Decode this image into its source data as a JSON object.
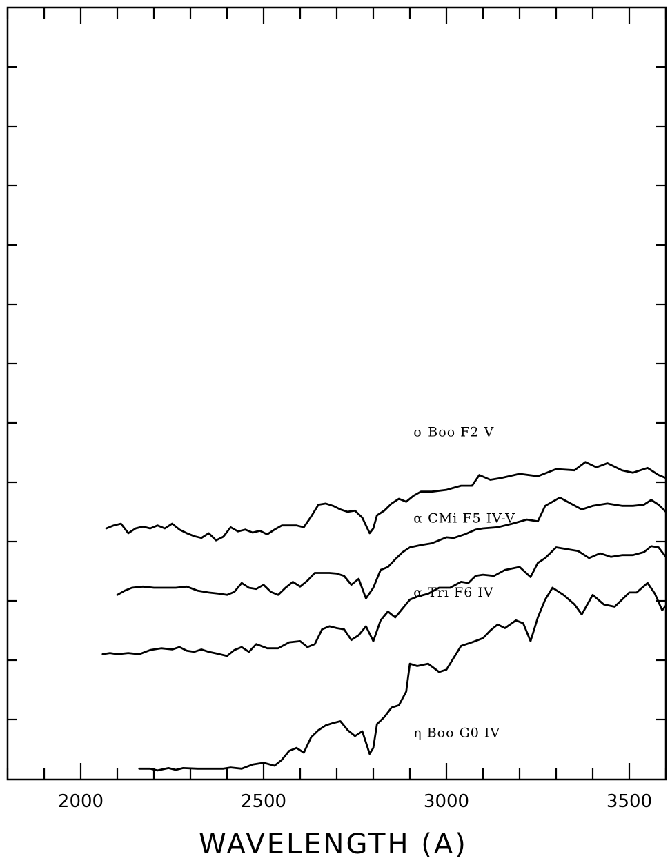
{
  "chart_data": {
    "type": "line",
    "title": "",
    "xlabel": "WAVELENGTH (A)",
    "ylabel": "",
    "xlim": [
      1800,
      3600
    ],
    "x_ticks": [
      2000,
      2500,
      3000,
      3500
    ],
    "x_tick_labels": [
      "2000",
      "2500",
      "3000",
      "3500"
    ],
    "y_scale": "offset relative flux (unlabeled)",
    "grid": false,
    "series": [
      {
        "name": "σ Boo F2 V",
        "x": [
          2070,
          2090,
          2110,
          2130,
          2150,
          2170,
          2190,
          2210,
          2230,
          2250,
          2270,
          2290,
          2310,
          2330,
          2350,
          2370,
          2390,
          2410,
          2430,
          2450,
          2470,
          2490,
          2510,
          2530,
          2550,
          2570,
          2590,
          2610,
          2630,
          2650,
          2670,
          2690,
          2710,
          2730,
          2750,
          2770,
          2790,
          2800,
          2810,
          2830,
          2850,
          2870,
          2890,
          2910,
          2930,
          2960,
          3000,
          3040,
          3070,
          3090,
          3120,
          3150,
          3200,
          3250,
          3300,
          3350,
          3380,
          3410,
          3440,
          3480,
          3510,
          3550,
          3580,
          3600
        ],
        "y": [
          4.0,
          4.05,
          4.08,
          3.92,
          4.0,
          4.03,
          4.0,
          4.05,
          4.0,
          4.08,
          3.98,
          3.92,
          3.87,
          3.84,
          3.92,
          3.8,
          3.86,
          4.02,
          3.95,
          3.98,
          3.93,
          3.96,
          3.9,
          3.98,
          4.05,
          4.05,
          4.05,
          4.02,
          4.2,
          4.4,
          4.42,
          4.38,
          4.32,
          4.28,
          4.3,
          4.18,
          3.92,
          4.0,
          4.22,
          4.3,
          4.42,
          4.5,
          4.45,
          4.55,
          4.62,
          4.62,
          4.65,
          4.72,
          4.72,
          4.9,
          4.82,
          4.85,
          4.92,
          4.88,
          5.0,
          4.98,
          5.12,
          5.03,
          5.1,
          4.98,
          4.94,
          5.02,
          4.9,
          4.85
        ]
      },
      {
        "name": "α CMi F5 IV-V",
        "x": [
          2100,
          2120,
          2140,
          2170,
          2200,
          2230,
          2260,
          2290,
          2320,
          2350,
          2380,
          2400,
          2420,
          2440,
          2460,
          2480,
          2500,
          2520,
          2540,
          2560,
          2580,
          2600,
          2620,
          2640,
          2660,
          2680,
          2700,
          2720,
          2740,
          2760,
          2780,
          2800,
          2820,
          2840,
          2860,
          2880,
          2900,
          2930,
          2960,
          3000,
          3020,
          3050,
          3080,
          3100,
          3140,
          3180,
          3220,
          3250,
          3270,
          3290,
          3310,
          3340,
          3370,
          3400,
          3440,
          3480,
          3510,
          3540,
          3560,
          3580,
          3600
        ],
        "y": [
          2.88,
          2.95,
          3.0,
          3.02,
          3.0,
          3.0,
          3.0,
          3.02,
          2.95,
          2.92,
          2.9,
          2.88,
          2.93,
          3.08,
          3.0,
          2.98,
          3.05,
          2.93,
          2.88,
          3.0,
          3.1,
          3.02,
          3.12,
          3.25,
          3.25,
          3.25,
          3.24,
          3.2,
          3.05,
          3.15,
          2.82,
          3.0,
          3.3,
          3.35,
          3.48,
          3.6,
          3.68,
          3.72,
          3.75,
          3.85,
          3.84,
          3.9,
          3.98,
          4.0,
          4.02,
          4.08,
          4.15,
          4.12,
          4.38,
          4.45,
          4.52,
          4.42,
          4.32,
          4.38,
          4.42,
          4.38,
          4.38,
          4.4,
          4.48,
          4.4,
          4.28
        ]
      },
      {
        "name": "α Tri F6 IV",
        "x": [
          2060,
          2080,
          2100,
          2130,
          2160,
          2190,
          2220,
          2250,
          2270,
          2290,
          2310,
          2330,
          2350,
          2380,
          2400,
          2420,
          2440,
          2460,
          2480,
          2510,
          2540,
          2570,
          2600,
          2620,
          2640,
          2660,
          2680,
          2700,
          2720,
          2740,
          2760,
          2780,
          2800,
          2820,
          2840,
          2860,
          2880,
          2900,
          2920,
          2950,
          2980,
          3010,
          3040,
          3060,
          3080,
          3100,
          3130,
          3160,
          3200,
          3230,
          3250,
          3270,
          3300,
          3330,
          3360,
          3390,
          3420,
          3450,
          3480,
          3510,
          3540,
          3560,
          3580,
          3600
        ],
        "y": [
          1.88,
          1.9,
          1.88,
          1.9,
          1.88,
          1.95,
          1.98,
          1.96,
          2.0,
          1.94,
          1.92,
          1.96,
          1.92,
          1.88,
          1.85,
          1.95,
          2.0,
          1.92,
          2.05,
          1.98,
          1.98,
          2.08,
          2.1,
          2.0,
          2.05,
          2.3,
          2.35,
          2.32,
          2.3,
          2.12,
          2.2,
          2.35,
          2.1,
          2.45,
          2.6,
          2.5,
          2.65,
          2.8,
          2.85,
          2.9,
          3.0,
          3.0,
          3.1,
          3.08,
          3.2,
          3.22,
          3.2,
          3.3,
          3.35,
          3.18,
          3.42,
          3.5,
          3.68,
          3.65,
          3.62,
          3.5,
          3.58,
          3.52,
          3.55,
          3.55,
          3.6,
          3.7,
          3.68,
          3.52
        ]
      },
      {
        "name": "η Boo G0 IV",
        "x": [
          2160,
          2190,
          2210,
          2240,
          2260,
          2280,
          2320,
          2360,
          2390,
          2410,
          2440,
          2470,
          2500,
          2530,
          2550,
          2570,
          2590,
          2610,
          2630,
          2650,
          2670,
          2690,
          2710,
          2730,
          2750,
          2770,
          2790,
          2800,
          2810,
          2830,
          2850,
          2870,
          2890,
          2900,
          2920,
          2950,
          2980,
          3000,
          3020,
          3040,
          3070,
          3100,
          3120,
          3140,
          3160,
          3190,
          3210,
          3230,
          3250,
          3270,
          3290,
          3320,
          3350,
          3370,
          3400,
          3430,
          3460,
          3480,
          3500,
          3520,
          3550,
          3570,
          3590,
          3600
        ],
        "y": [
          -0.05,
          -0.05,
          -0.08,
          -0.04,
          -0.07,
          -0.04,
          -0.05,
          -0.05,
          -0.05,
          -0.03,
          -0.05,
          0.02,
          0.05,
          0.0,
          0.1,
          0.25,
          0.3,
          0.22,
          0.48,
          0.6,
          0.68,
          0.72,
          0.75,
          0.6,
          0.5,
          0.58,
          0.2,
          0.3,
          0.7,
          0.82,
          0.98,
          1.02,
          1.25,
          1.72,
          1.68,
          1.72,
          1.58,
          1.62,
          1.82,
          2.02,
          2.08,
          2.15,
          2.28,
          2.38,
          2.32,
          2.45,
          2.4,
          2.1,
          2.5,
          2.8,
          3.0,
          2.88,
          2.72,
          2.55,
          2.88,
          2.72,
          2.68,
          2.8,
          2.92,
          2.92,
          3.08,
          2.9,
          2.62,
          2.7
        ]
      }
    ],
    "annotations": [
      {
        "text": "σ Boo F2 V",
        "x": 2910,
        "y": 5.55
      },
      {
        "text": "α CMi F5 IV-V",
        "x": 2910,
        "y": 4.1
      },
      {
        "text": "α Tri F6 IV",
        "x": 2910,
        "y": 2.85
      },
      {
        "text": "η Boo G0 IV",
        "x": 2910,
        "y": 0.48
      }
    ]
  }
}
